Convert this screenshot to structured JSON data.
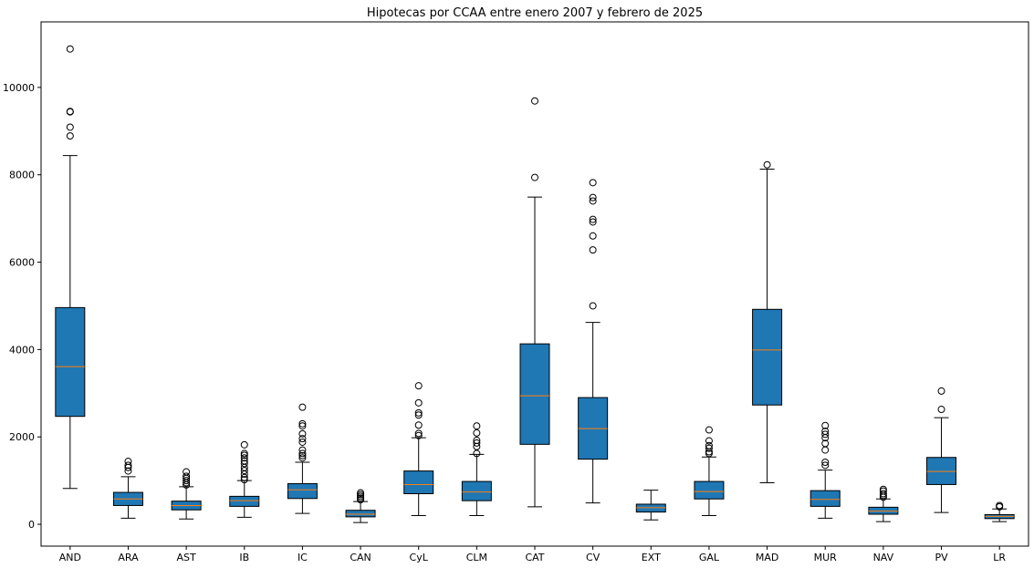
{
  "chart_data": {
    "type": "boxplot",
    "title": "Hipotecas por CCAA entre enero 2007 y febrero de 2025",
    "xlabel": "",
    "ylabel": "",
    "ylim": [
      -500,
      11500
    ],
    "yticks": [
      0,
      2000,
      4000,
      6000,
      8000,
      10000
    ],
    "box_color": "#1f77b4",
    "median_color": "#ff7f0e",
    "categories": [
      "AND",
      "ARA",
      "AST",
      "IB",
      "IC",
      "CAN",
      "CyL",
      "CLM",
      "CAT",
      "CV",
      "EXT",
      "GAL",
      "MAD",
      "MUR",
      "NAV",
      "PV",
      "LR"
    ],
    "boxes": [
      {
        "label": "AND",
        "whislo": 820,
        "q1": 2470,
        "med": 3610,
        "q3": 4960,
        "whishi": 8440,
        "fliers": [
          10880,
          9450,
          9440,
          9090,
          8890
        ]
      },
      {
        "label": "ARA",
        "whislo": 140,
        "q1": 430,
        "med": 580,
        "q3": 730,
        "whishi": 1090,
        "fliers": [
          1220,
          1300,
          1350,
          1440
        ]
      },
      {
        "label": "AST",
        "whislo": 120,
        "q1": 330,
        "med": 430,
        "q3": 530,
        "whishi": 860,
        "fliers": [
          900,
          950,
          1000,
          1050,
          1100,
          1200
        ]
      },
      {
        "label": "IB",
        "whislo": 160,
        "q1": 410,
        "med": 540,
        "q3": 640,
        "whishi": 1000,
        "fliers": [
          1020,
          1070,
          1150,
          1230,
          1300,
          1390,
          1450,
          1520,
          1580,
          1620,
          1820
        ]
      },
      {
        "label": "IC",
        "whislo": 250,
        "q1": 590,
        "med": 790,
        "q3": 930,
        "whishi": 1420,
        "fliers": [
          1520,
          1570,
          1620,
          1700,
          1880,
          1960,
          2070,
          2250,
          2300,
          2680
        ]
      },
      {
        "label": "CAN",
        "whislo": 40,
        "q1": 170,
        "med": 230,
        "q3": 320,
        "whishi": 520,
        "fliers": [
          560,
          600,
          640,
          680,
          720
        ]
      },
      {
        "label": "CyL",
        "whislo": 200,
        "q1": 700,
        "med": 910,
        "q3": 1220,
        "whishi": 1980,
        "fliers": [
          2030,
          2080,
          2270,
          2500,
          2550,
          2780,
          3170
        ]
      },
      {
        "label": "CLM",
        "whislo": 200,
        "q1": 540,
        "med": 740,
        "q3": 980,
        "whishi": 1600,
        "fliers": [
          1620,
          1780,
          1860,
          1920,
          2090,
          2250
        ]
      },
      {
        "label": "CAT",
        "whislo": 400,
        "q1": 1830,
        "med": 2940,
        "q3": 4130,
        "whishi": 7490,
        "fliers": [
          7940,
          9690
        ]
      },
      {
        "label": "CV",
        "whislo": 490,
        "q1": 1490,
        "med": 2190,
        "q3": 2900,
        "whishi": 4620,
        "fliers": [
          5000,
          6280,
          6600,
          6920,
          6980,
          7400,
          7480,
          7820
        ]
      },
      {
        "label": "EXT",
        "whislo": 100,
        "q1": 280,
        "med": 380,
        "q3": 460,
        "whishi": 780,
        "fliers": []
      },
      {
        "label": "GAL",
        "whislo": 200,
        "q1": 580,
        "med": 750,
        "q3": 980,
        "whishi": 1540,
        "fliers": [
          1620,
          1660,
          1740,
          1800,
          1910,
          2160
        ]
      },
      {
        "label": "MAD",
        "whislo": 950,
        "q1": 2730,
        "med": 3990,
        "q3": 4920,
        "whishi": 8130,
        "fliers": [
          8230
        ]
      },
      {
        "label": "MUR",
        "whislo": 140,
        "q1": 410,
        "med": 570,
        "q3": 770,
        "whishi": 1240,
        "fliers": [
          1350,
          1420,
          1700,
          1850,
          1980,
          2060,
          2130,
          2260
        ]
      },
      {
        "label": "NAV",
        "whislo": 60,
        "q1": 230,
        "med": 300,
        "q3": 390,
        "whishi": 580,
        "fliers": [
          620,
          660,
          700,
          760,
          800
        ]
      },
      {
        "label": "PV",
        "whislo": 270,
        "q1": 910,
        "med": 1210,
        "q3": 1530,
        "whishi": 2440,
        "fliers": [
          2630,
          3050
        ]
      },
      {
        "label": "LR",
        "whislo": 60,
        "q1": 130,
        "med": 180,
        "q3": 220,
        "whishi": 350,
        "fliers": [
          400,
          430
        ]
      }
    ]
  }
}
